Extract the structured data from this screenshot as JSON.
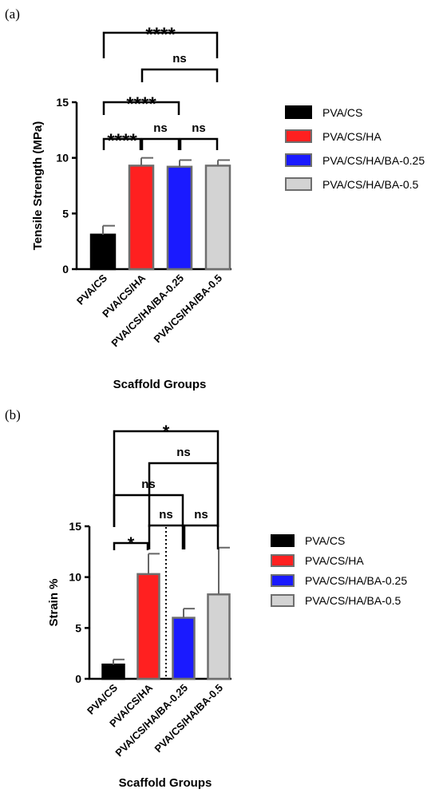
{
  "panels": [
    {
      "label": "(a)"
    },
    {
      "label": "(b)"
    }
  ],
  "chart_data": [
    {
      "type": "bar",
      "title": "",
      "xlabel": "Scaffold Groups",
      "ylabel": "Tensile Strength (MPa)",
      "ylim": [
        0,
        15
      ],
      "yticks": [
        "0",
        "5",
        "10",
        "15"
      ],
      "grid": false,
      "legend_position": "right",
      "categories": [
        "PVA/CS",
        "PVA/CS/HA",
        "PVA/CS/HA/BA-0.25",
        "PVA/CS/HA/BA-0.5"
      ],
      "values": [
        3.1,
        9.3,
        9.2,
        9.3
      ],
      "errors": [
        0.8,
        0.7,
        0.6,
        0.5
      ],
      "colors": [
        "#000000",
        "#ff2020",
        "#1a1aff",
        "#d3d3d3"
      ],
      "legend": [
        "PVA/CS",
        "PVA/CS/HA",
        "PVA/CS/HA/BA-0.25",
        "PVA/CS/HA/BA-0.5"
      ],
      "comparisons": [
        {
          "from": 0,
          "to": 1,
          "label": "****"
        },
        {
          "from": 1,
          "to": 2,
          "label": "ns"
        },
        {
          "from": 2,
          "to": 3,
          "label": "ns"
        },
        {
          "from": 0,
          "to": 2,
          "label": "****"
        },
        {
          "from": 1,
          "to": 3,
          "label": "ns"
        },
        {
          "from": 0,
          "to": 3,
          "label": "****"
        }
      ]
    },
    {
      "type": "bar",
      "title": "",
      "xlabel": "Scaffold Groups",
      "ylabel": "Strain %",
      "ylim": [
        0,
        15
      ],
      "yticks": [
        "0",
        "5",
        "10",
        "15"
      ],
      "grid": false,
      "legend_position": "right",
      "categories": [
        "PVA/CS",
        "PVA/CS/HA",
        "PVA/CS/HA/BA-0.25",
        "PVA/CS/HA/BA-0.5"
      ],
      "values": [
        1.4,
        10.3,
        6.0,
        8.3
      ],
      "errors": [
        0.5,
        2.0,
        0.9,
        4.6
      ],
      "colors": [
        "#000000",
        "#ff2020",
        "#1a1aff",
        "#d3d3d3"
      ],
      "legend": [
        "PVA/CS",
        "PVA/CS/HA",
        "PVA/CS/HA/BA-0.25",
        "PVA/CS/HA/BA-0.5"
      ],
      "comparisons": [
        {
          "from": 0,
          "to": 1,
          "label": "*"
        },
        {
          "from": 1,
          "to": 2,
          "label": "ns"
        },
        {
          "from": 2,
          "to": 3,
          "label": "ns"
        },
        {
          "from": 0,
          "to": 2,
          "label": "ns"
        },
        {
          "from": 1,
          "to": 3,
          "label": "ns"
        },
        {
          "from": 0,
          "to": 3,
          "label": "*"
        }
      ]
    }
  ]
}
